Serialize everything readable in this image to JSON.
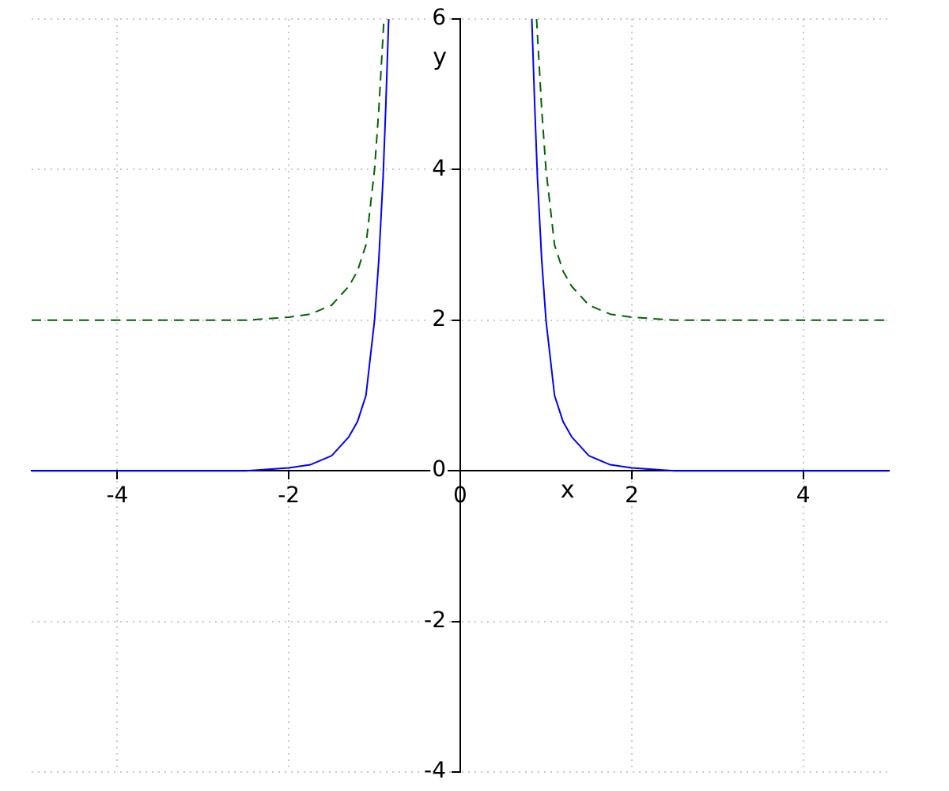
{
  "chart_data": {
    "type": "line",
    "xlabel": "x",
    "ylabel": "y",
    "xlim": [
      -5,
      5
    ],
    "ylim": [
      -4,
      6
    ],
    "xticks": [
      -4,
      -2,
      0,
      2,
      4
    ],
    "yticks": [
      -4,
      -2,
      0,
      2,
      4,
      6
    ],
    "grid": true,
    "legend": false,
    "marker": "none",
    "series": [
      {
        "color": "#0000ff",
        "line_style": "solid",
        "x": [
          -5,
          -4,
          -3,
          -2.5,
          -2,
          -1.75,
          -1.5,
          -1.3,
          -1.2,
          -1.1,
          -1,
          -0.95,
          -0.9,
          -0.87,
          -0.835,
          0,
          0.835,
          0.87,
          0.9,
          0.95,
          1,
          1.1,
          1.2,
          1.3,
          1.5,
          1.75,
          2,
          2.5,
          3,
          4,
          5
        ],
        "values": [
          0,
          0,
          0,
          0,
          0.04,
          0.08,
          0.2,
          0.45,
          0.65,
          1,
          2,
          2.8,
          3.9,
          4.8,
          6,
          null,
          6,
          4.8,
          3.9,
          2.8,
          2,
          1,
          0.65,
          0.45,
          0.2,
          0.08,
          0.04,
          0,
          0,
          0,
          0
        ]
      },
      {
        "color": "#006400",
        "line_style": "dashed",
        "x": [
          -5,
          -4,
          -3,
          -2.5,
          -2,
          -1.75,
          -1.5,
          -1.3,
          -1.2,
          -1.1,
          -1,
          -0.95,
          -0.89,
          0,
          0.89,
          0.95,
          1,
          1.1,
          1.2,
          1.3,
          1.5,
          1.75,
          2,
          2.5,
          3,
          4,
          5
        ],
        "values": [
          2,
          2,
          2,
          2,
          2.04,
          2.08,
          2.2,
          2.45,
          2.65,
          3,
          4,
          4.8,
          6,
          null,
          6,
          4.8,
          4,
          3,
          2.65,
          2.45,
          2.2,
          2.08,
          2.04,
          2,
          2,
          2,
          2
        ]
      }
    ]
  }
}
